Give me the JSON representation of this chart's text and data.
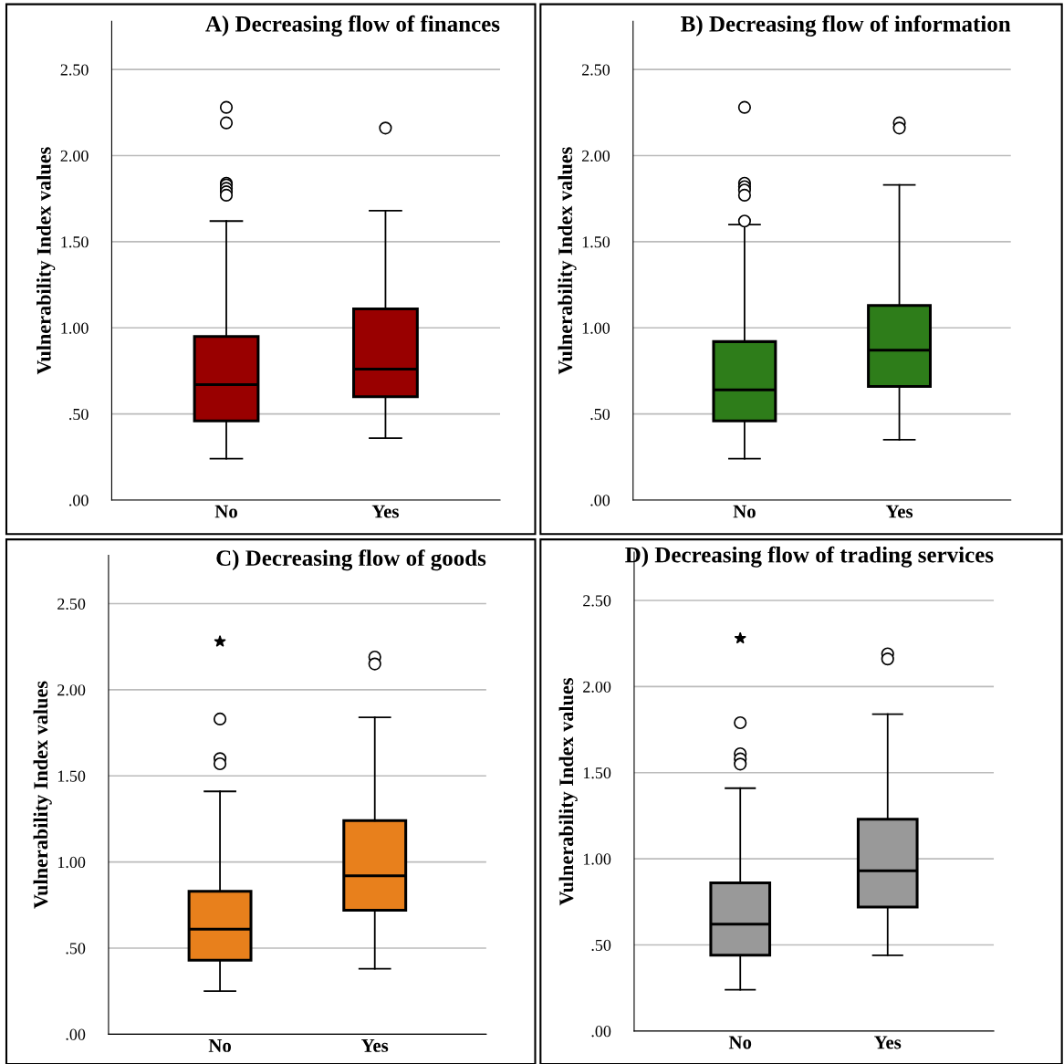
{
  "chart_data": [
    {
      "type": "box",
      "title": "A) Decreasing flow of finances",
      "ylabel": "Vulnerability Index values",
      "categories": [
        "No",
        "Yes"
      ],
      "color": "#990000",
      "ylim": [
        0,
        2.78
      ],
      "yticks": [
        {
          "value": 0,
          "label": ".00"
        },
        {
          "value": 0.5,
          "label": ".50"
        },
        {
          "value": 1.0,
          "label": "1.00"
        },
        {
          "value": 1.5,
          "label": "1.50"
        },
        {
          "value": 2.0,
          "label": "2.00"
        },
        {
          "value": 2.5,
          "label": "2.50"
        }
      ],
      "grid": "y",
      "boxes": [
        {
          "low": 0.24,
          "q1": 0.46,
          "median": 0.67,
          "q3": 0.95,
          "high": 1.62,
          "outliers": [
            2.28,
            2.19,
            1.84,
            1.83,
            1.81,
            1.79,
            1.77
          ]
        },
        {
          "low": 0.36,
          "q1": 0.6,
          "median": 0.76,
          "q3": 1.11,
          "high": 1.68,
          "outliers": [
            2.16
          ]
        }
      ]
    },
    {
      "type": "box",
      "title": "B) Decreasing flow of information",
      "ylabel": "Vulnerability Index values",
      "categories": [
        "No",
        "Yes"
      ],
      "color": "#2e7d1a",
      "ylim": [
        0,
        2.78
      ],
      "yticks": [
        {
          "value": 0,
          "label": ".00"
        },
        {
          "value": 0.5,
          "label": ".50"
        },
        {
          "value": 1.0,
          "label": "1.00"
        },
        {
          "value": 1.5,
          "label": "1.50"
        },
        {
          "value": 2.0,
          "label": "2.00"
        },
        {
          "value": 2.5,
          "label": "2.50"
        }
      ],
      "grid": "y",
      "boxes": [
        {
          "low": 0.24,
          "q1": 0.46,
          "median": 0.64,
          "q3": 0.92,
          "high": 1.6,
          "outliers": [
            2.28,
            1.84,
            1.82,
            1.8,
            1.77,
            1.62
          ]
        },
        {
          "low": 0.35,
          "q1": 0.66,
          "median": 0.87,
          "q3": 1.13,
          "high": 1.83,
          "outliers": [
            2.19,
            2.16
          ]
        }
      ]
    },
    {
      "type": "box",
      "title": "C) Decreasing flow of goods",
      "ylabel": "Vulnerability Index values",
      "categories": [
        "No",
        "Yes"
      ],
      "color": "#e8801c",
      "ylim": [
        0,
        2.78
      ],
      "yticks": [
        {
          "value": 0,
          "label": ".00"
        },
        {
          "value": 0.5,
          "label": ".50"
        },
        {
          "value": 1.0,
          "label": "1.00"
        },
        {
          "value": 1.5,
          "label": "1.50"
        },
        {
          "value": 2.0,
          "label": "2.00"
        },
        {
          "value": 2.5,
          "label": "2.50"
        }
      ],
      "grid": "y",
      "boxes": [
        {
          "low": 0.25,
          "q1": 0.43,
          "median": 0.61,
          "q3": 0.83,
          "high": 1.41,
          "outliers": [
            2.28,
            1.83,
            1.6,
            1.57
          ]
        },
        {
          "low": 0.38,
          "q1": 0.72,
          "median": 0.92,
          "q3": 1.24,
          "high": 1.84,
          "outliers": [
            2.19,
            2.15
          ]
        }
      ]
    },
    {
      "type": "box",
      "title": "D) Decreasing flow of trading services",
      "ylabel": "Vulnerability Index values",
      "categories": [
        "No",
        "Yes"
      ],
      "color": "#999999",
      "ylim": [
        0,
        2.78
      ],
      "yticks": [
        {
          "value": 0,
          "label": ".00"
        },
        {
          "value": 0.5,
          "label": ".50"
        },
        {
          "value": 1.0,
          "label": "1.00"
        },
        {
          "value": 1.5,
          "label": "1.50"
        },
        {
          "value": 2.0,
          "label": "2.00"
        },
        {
          "value": 2.5,
          "label": "2.50"
        }
      ],
      "grid": "y",
      "boxes": [
        {
          "low": 0.24,
          "q1": 0.44,
          "median": 0.62,
          "q3": 0.86,
          "high": 1.41,
          "outliers": [
            2.28,
            1.79,
            1.61,
            1.58,
            1.55
          ]
        },
        {
          "low": 0.44,
          "q1": 0.72,
          "median": 0.93,
          "q3": 1.23,
          "high": 1.84,
          "outliers": [
            2.19,
            2.16
          ]
        }
      ]
    }
  ]
}
